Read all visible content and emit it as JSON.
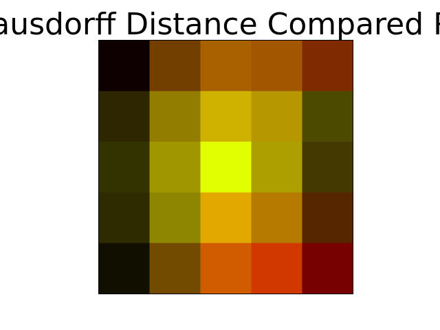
{
  "chart_data": {
    "type": "heatmap",
    "title": "Hausdorff Distance Compared Re",
    "xlabel": "",
    "ylabel": "",
    "axes_visible": false,
    "legend": "none",
    "colors": [
      [
        "#0f0000",
        "#733f00",
        "#a96100",
        "#a25600",
        "#7f2a00"
      ],
      [
        "#2e2600",
        "#927d00",
        "#cfb200",
        "#b79700",
        "#4c4a00"
      ],
      [
        "#333300",
        "#a09600",
        "#e2ff00",
        "#ad9f00",
        "#443900"
      ],
      [
        "#2e2b00",
        "#8e8600",
        "#e2a800",
        "#b77a00",
        "#562600"
      ],
      [
        "#111000",
        "#724b00",
        "#d15c00",
        "#d03800",
        "#770000"
      ]
    ]
  }
}
